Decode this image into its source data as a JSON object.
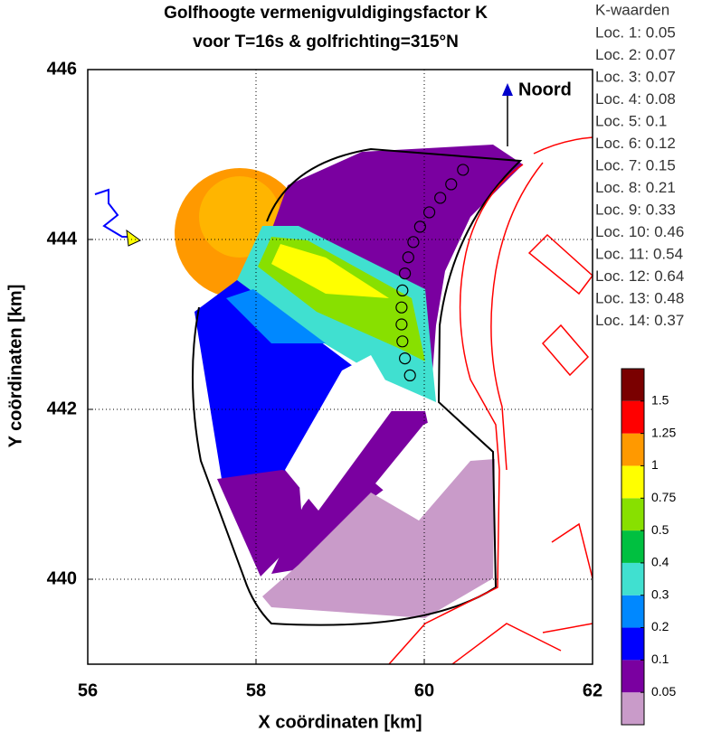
{
  "chart_data": {
    "type": "contour",
    "title": [
      "Golfhoogte vermenigvuldigingsfactor K",
      "voor T=16s & golfrichting=315°N"
    ],
    "xlabel": "X coördinaten [km]",
    "ylabel": "Y coördinaten [km]",
    "xlim": [
      56,
      62
    ],
    "xticks": [
      56,
      58,
      60,
      62
    ],
    "ylim": [
      439,
      446
    ],
    "yticks": [
      440,
      442,
      444,
      446
    ],
    "grid": true,
    "north_label": "Noord",
    "locations": {
      "title": "K-waarden",
      "x": [
        60.46,
        60.32,
        60.19,
        60.06,
        59.95,
        59.87,
        59.81,
        59.77,
        59.74,
        59.73,
        59.73,
        59.74,
        59.77,
        59.83
      ],
      "y": [
        444.82,
        444.65,
        444.49,
        444.32,
        444.15,
        443.97,
        443.79,
        443.6,
        443.4,
        443.2,
        443.0,
        442.8,
        442.6,
        442.4
      ],
      "k": [
        0.05,
        0.07,
        0.07,
        0.08,
        0.1,
        0.12,
        0.15,
        0.21,
        0.33,
        0.46,
        0.54,
        0.64,
        0.48,
        0.37
      ],
      "labels": [
        "Loc. 1: 0.05",
        "Loc. 2: 0.07",
        "Loc. 3: 0.07",
        "Loc. 4: 0.08",
        "Loc. 5: 0.1",
        "Loc. 6: 0.12",
        "Loc. 7: 0.15",
        "Loc. 8: 0.21",
        "Loc. 9: 0.33",
        "Loc. 10: 0.46",
        "Loc. 11: 0.54",
        "Loc. 12: 0.64",
        "Loc. 13: 0.48",
        "Loc. 14: 0.37"
      ]
    },
    "colorbar": {
      "ticks": [
        0.05,
        0.1,
        0.2,
        0.3,
        0.4,
        0.5,
        0.75,
        1,
        1.25,
        1.5
      ],
      "colors": [
        "#c99bc9",
        "#7a00a0",
        "#0000ff",
        "#0088ff",
        "#40e0d0",
        "#00c040",
        "#88e000",
        "#ffff00",
        "#ff9900",
        "#ff0000",
        "#7a0000"
      ]
    }
  }
}
